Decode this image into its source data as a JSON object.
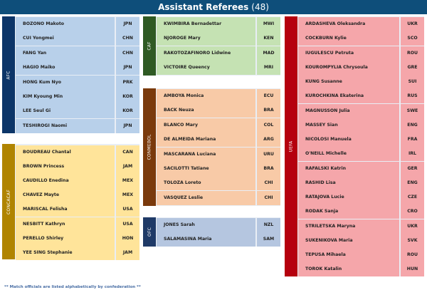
{
  "title": "Assistant Referees",
  "count": "(48)",
  "footer": "** Match officials are listed alphabetically by confederation **",
  "confederations": {
    "afc": {
      "label": "AFC",
      "colors": {
        "band": "#0c3568",
        "row": "#b8d0ea"
      },
      "officials": [
        {
          "name": "BOZONO Makoto",
          "country": "JPN"
        },
        {
          "name": "CUI Yongmei",
          "country": "CHN"
        },
        {
          "name": "FANG Yan",
          "country": "CHN"
        },
        {
          "name": "HAGIO Maiko",
          "country": "JPN"
        },
        {
          "name": "HONG Kum Nyo",
          "country": "PRK"
        },
        {
          "name": "KIM Kyoung Min",
          "country": "KOR"
        },
        {
          "name": "LEE Seul Gi",
          "country": "KOR"
        },
        {
          "name": "TESHIROGI Naomi",
          "country": "JPN"
        }
      ]
    },
    "concacaf": {
      "label": "CONCACAF",
      "colors": {
        "band": "#b08400",
        "row": "#ffe49a"
      },
      "officials": [
        {
          "name": "BOUDREAU Chantal",
          "country": "CAN"
        },
        {
          "name": "BROWN Princess",
          "country": "JAM"
        },
        {
          "name": "CAUDILLO Enedina",
          "country": "MEX"
        },
        {
          "name": "CHAVEZ Mayte",
          "country": "MEX"
        },
        {
          "name": "MARISCAL Felisha",
          "country": "USA"
        },
        {
          "name": "NESBITT Kathryn",
          "country": "USA"
        },
        {
          "name": "PERELLO Shirley",
          "country": "HON"
        },
        {
          "name": "YEE SING Stephanie",
          "country": "JAM"
        }
      ]
    },
    "caf": {
      "label": "CAF",
      "colors": {
        "band": "#2f5a23",
        "row": "#c5e2b3"
      },
      "officials": [
        {
          "name": "KWIMBIRA Bernadettar",
          "country": "MWI"
        },
        {
          "name": "NJOROGE Mary",
          "country": "KEN"
        },
        {
          "name": "RAKOTOZAFINORO Lidwine",
          "country": "MAD"
        },
        {
          "name": "VICTOIRE Queency",
          "country": "MRI"
        }
      ]
    },
    "conmebol": {
      "label": "CONMEBOL",
      "colors": {
        "band": "#7a3a0c",
        "row": "#f8caa7"
      },
      "officials": [
        {
          "name": "AMBOYA Monica",
          "country": "ECU"
        },
        {
          "name": "BACK Neuza",
          "country": "BRA"
        },
        {
          "name": "BLANCO Mary",
          "country": "COL"
        },
        {
          "name": "DE ALMEIDA Mariana",
          "country": "ARG"
        },
        {
          "name": "MASCARANA Luciana",
          "country": "URU"
        },
        {
          "name": "SACILOTTI Tatiane",
          "country": "BRA"
        },
        {
          "name": "TOLOZA Loreto",
          "country": "CHI"
        },
        {
          "name": "VASQUEZ Leslie",
          "country": "CHI"
        }
      ]
    },
    "ofc": {
      "label": "OFC",
      "colors": {
        "band": "#1f3a67",
        "row": "#b5c6e0"
      },
      "officials": [
        {
          "name": "JONES Sarah",
          "country": "NZL"
        },
        {
          "name": "SALAMASINA Maria",
          "country": "SAM"
        }
      ]
    },
    "uefa": {
      "label": "UEFA",
      "colors": {
        "band": "#b5000e",
        "row": "#f5a6aa"
      },
      "officials": [
        {
          "name": "ARDASHEVA Oleksandra",
          "country": "UKR"
        },
        {
          "name": "COCKBURN Kylie",
          "country": "SCO"
        },
        {
          "name": "IUGULESCU Petruta",
          "country": "ROU"
        },
        {
          "name": "KOUROMPYLIA Chrysoula",
          "country": "GRE"
        },
        {
          "name": "KUNG Susanne",
          "country": "SUI"
        },
        {
          "name": "KUROCHKINA Ekaterina",
          "country": "RUS"
        },
        {
          "name": "MAGNUSSON Julia",
          "country": "SWE"
        },
        {
          "name": "MASSEY Sian",
          "country": "ENG"
        },
        {
          "name": "NICOLOSI Manuela",
          "country": "FRA"
        },
        {
          "name": "O'NEILL Michelle",
          "country": "IRL"
        },
        {
          "name": "RAFALSKI Katrin",
          "country": "GER"
        },
        {
          "name": "RASHID Lisa",
          "country": "ENG"
        },
        {
          "name": "RATAJOVA Lucie",
          "country": "CZE"
        },
        {
          "name": "RODAK Sanja",
          "country": "CRO"
        },
        {
          "name": "STRILETSKA Maryna",
          "country": "UKR"
        },
        {
          "name": "SUKENIKOVA Maria",
          "country": "SVK"
        },
        {
          "name": "TEPUSA Mihaela",
          "country": "ROU"
        },
        {
          "name": "TOROK Katalin",
          "country": "HUN"
        }
      ]
    }
  }
}
